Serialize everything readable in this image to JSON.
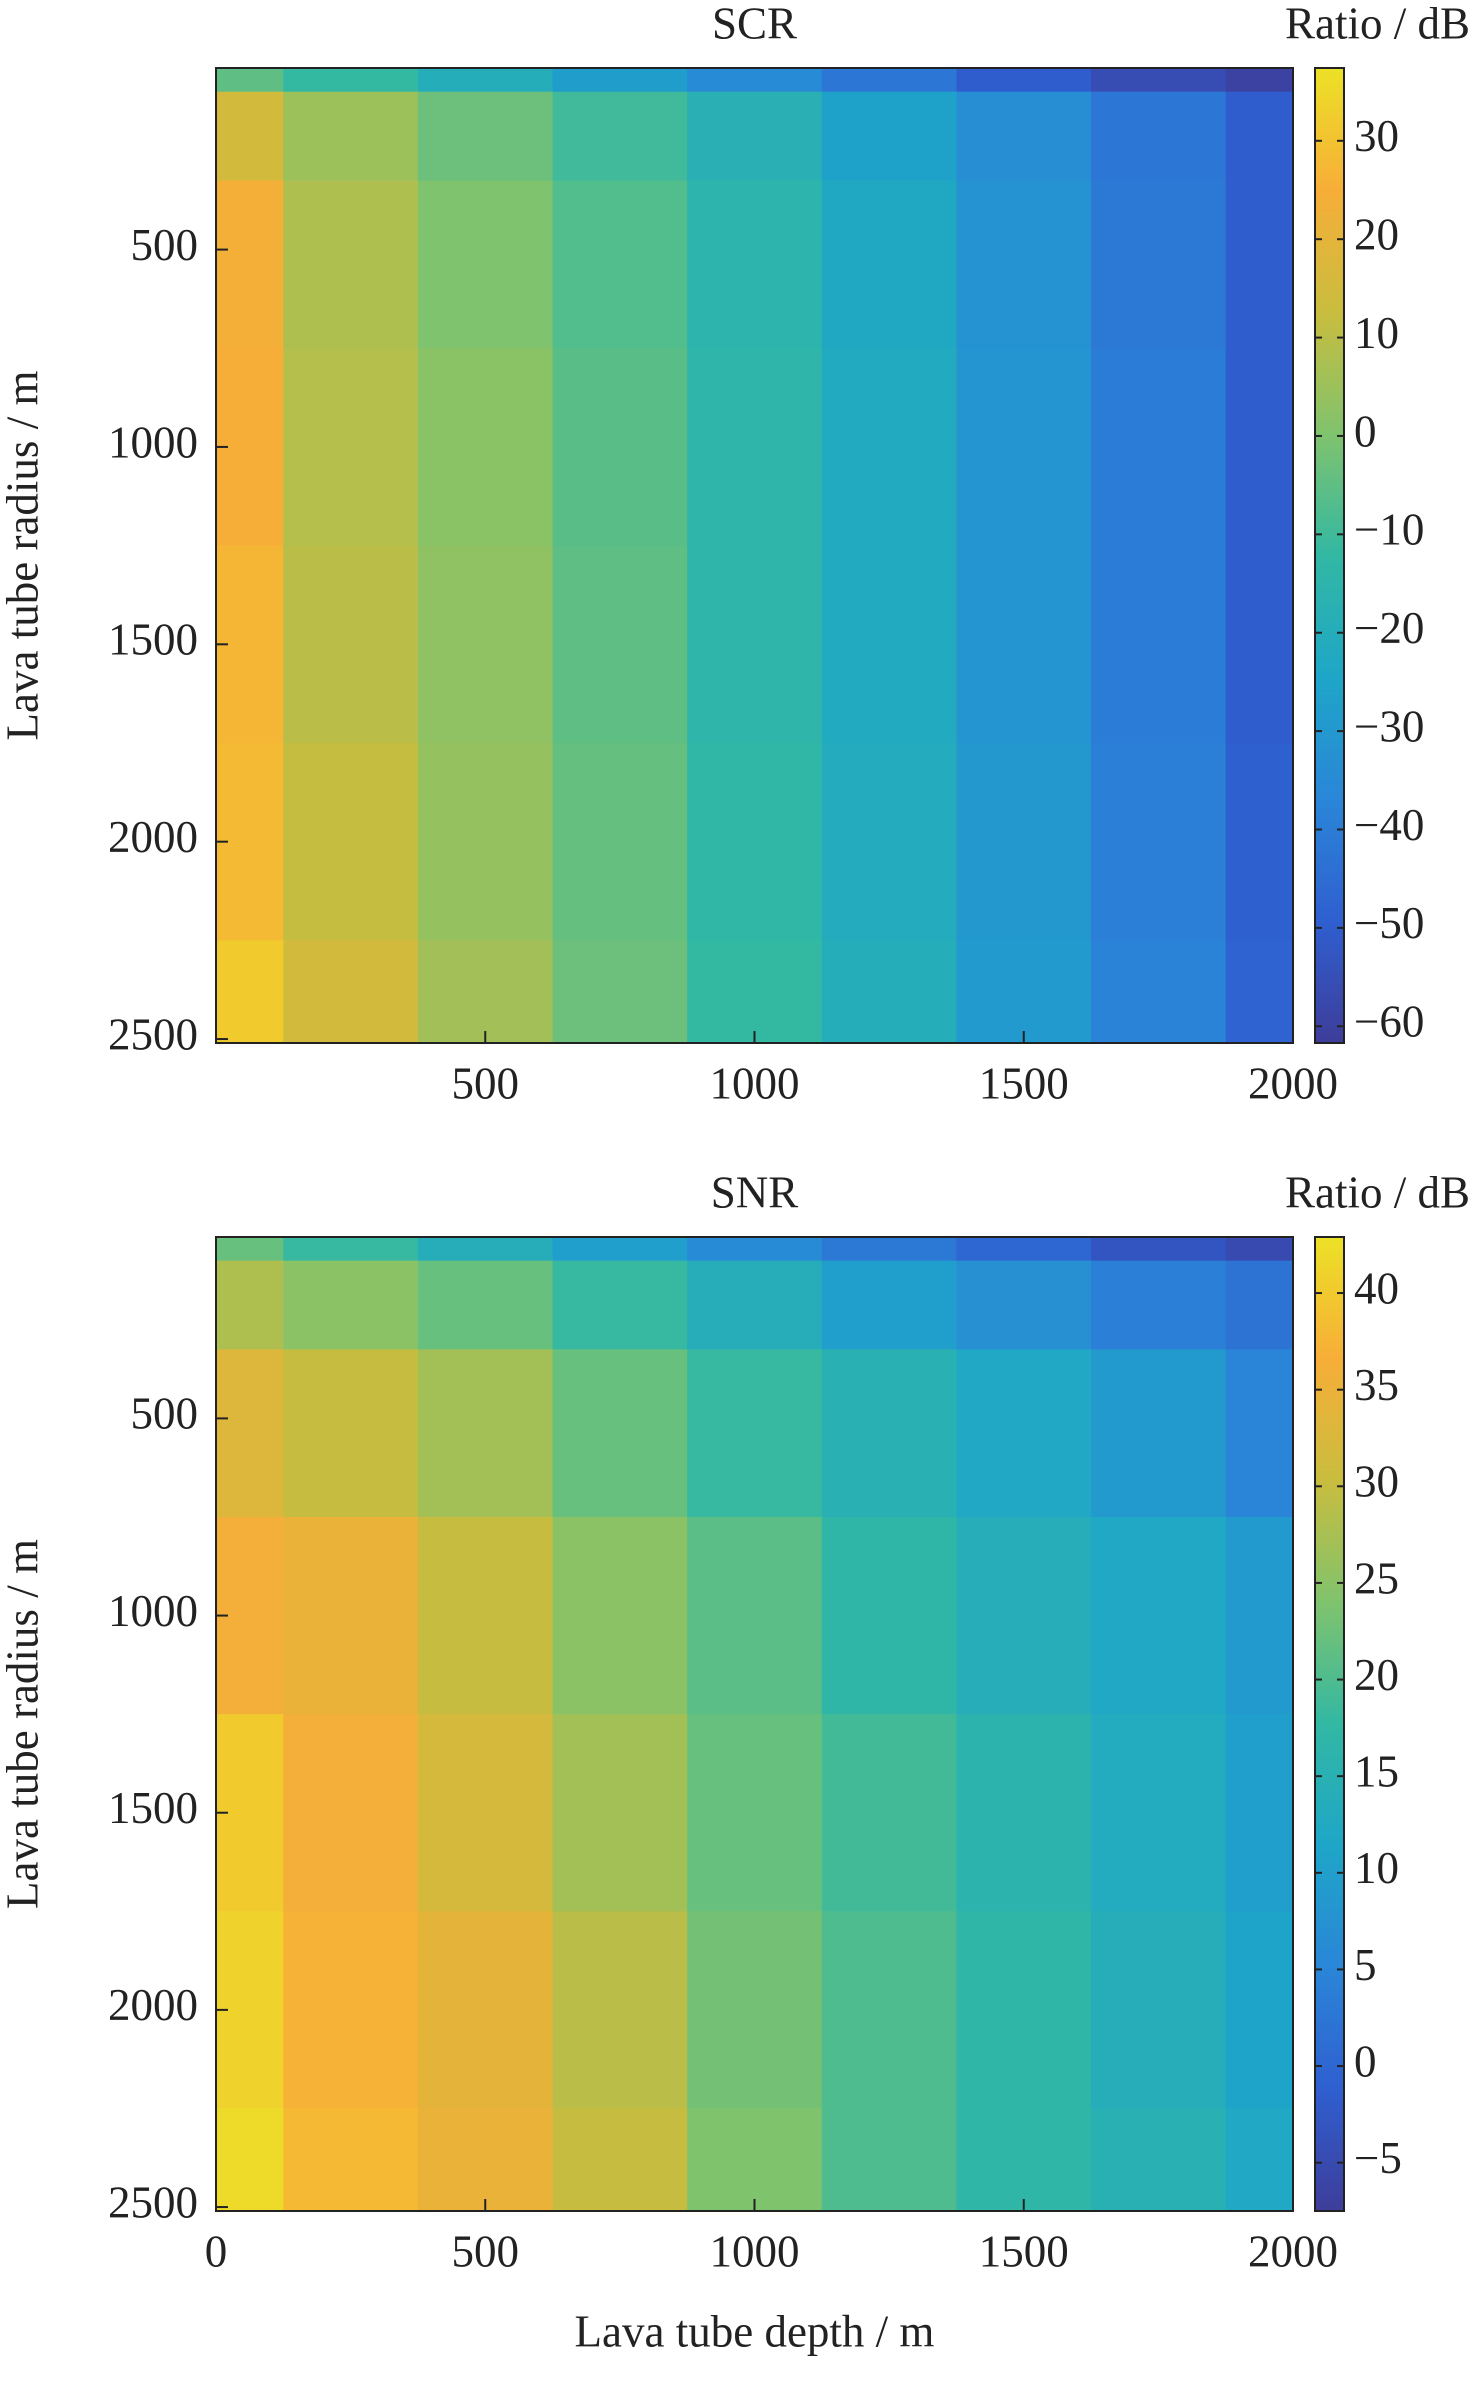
{
  "chart_data": [
    {
      "type": "heatmap",
      "title": "SCR",
      "ylabel": "Lava tube radius / m",
      "colorbar_label": "Ratio / dB",
      "x": [
        0,
        250,
        500,
        750,
        1000,
        1250,
        1500,
        1750,
        2000
      ],
      "y": [
        50,
        150,
        500,
        1000,
        1500,
        2000,
        2500
      ],
      "z": [
        [
          -5,
          -12,
          -20,
          -28,
          -35,
          -42,
          -50,
          -56,
          -60
        ],
        [
          15,
          5,
          -3,
          -10,
          -18,
          -26,
          -34,
          -42,
          -50
        ],
        [
          24,
          8,
          0,
          -7,
          -15,
          -23,
          -32,
          -41,
          -50
        ],
        [
          25,
          9,
          2,
          -6,
          -14,
          -22,
          -31,
          -40,
          -50
        ],
        [
          27,
          10,
          3,
          -5,
          -14,
          -22,
          -31,
          -40,
          -50
        ],
        [
          28,
          12,
          4,
          -4,
          -13,
          -21,
          -30,
          -39,
          -49
        ],
        [
          32,
          15,
          6,
          -3,
          -12,
          -20,
          -29,
          -38,
          -48
        ]
      ],
      "xlim": [
        0,
        2000
      ],
      "ylim": [
        40,
        2510
      ],
      "xticks": [
        500,
        1000,
        1500,
        2000
      ],
      "yticks": [
        500,
        1000,
        1500,
        2000,
        2500
      ],
      "clim": [
        -61.7,
        37.4
      ],
      "cticks": [
        30,
        20,
        10,
        0,
        {
          "value": -10,
          "label": "−10"
        },
        {
          "value": -20,
          "label": "−20"
        },
        {
          "value": -30,
          "label": "−30"
        },
        {
          "value": -40,
          "label": "−40"
        },
        {
          "value": -50,
          "label": "−50"
        },
        {
          "value": -60,
          "label": "−60"
        }
      ],
      "colormap": [
        "#3e3d9a",
        "#2f5fd0",
        "#2a86d8",
        "#1ea6c8",
        "#32b8a3",
        "#80c36d",
        "#c9bd3e",
        "#f7ae38",
        "#ece126"
      ]
    },
    {
      "type": "heatmap",
      "title": "SNR",
      "ylabel": "Lava tube radius / m",
      "xlabel": "Lava tube depth / m",
      "colorbar_label": "Ratio / dB",
      "x": [
        0,
        250,
        500,
        750,
        1000,
        1250,
        1500,
        1750,
        2000
      ],
      "y": [
        50,
        150,
        500,
        1000,
        1500,
        2000,
        2500
      ],
      "z": [
        [
          22,
          18,
          14,
          10,
          6,
          3,
          0,
          -3,
          -5
        ],
        [
          28,
          25,
          22,
          18,
          14,
          10,
          7,
          4,
          2
        ],
        [
          33,
          30,
          27,
          22,
          18,
          15,
          12,
          9,
          5
        ],
        [
          36,
          35,
          30,
          25,
          21,
          17,
          14,
          12,
          9
        ],
        [
          40,
          36,
          32,
          27,
          22,
          19,
          16,
          13,
          10
        ],
        [
          41,
          37,
          34,
          29,
          23,
          20,
          17,
          14,
          11
        ],
        [
          42,
          38,
          35,
          30,
          24,
          20,
          17,
          15,
          12
        ]
      ],
      "xlim": [
        0,
        2000
      ],
      "ylim": [
        40,
        2510
      ],
      "xticks": [
        0,
        500,
        1000,
        1500,
        2000
      ],
      "yticks": [
        500,
        1000,
        1500,
        2000,
        2500
      ],
      "clim": [
        -7.5,
        42.9
      ],
      "cticks": [
        40,
        35,
        30,
        25,
        20,
        15,
        10,
        5,
        0,
        {
          "value": -5,
          "label": "−5"
        }
      ],
      "colormap": [
        "#3e3d9a",
        "#2f5fd0",
        "#2a86d8",
        "#1ea6c8",
        "#32b8a3",
        "#80c36d",
        "#c9bd3e",
        "#f7ae38",
        "#ece126"
      ]
    }
  ]
}
